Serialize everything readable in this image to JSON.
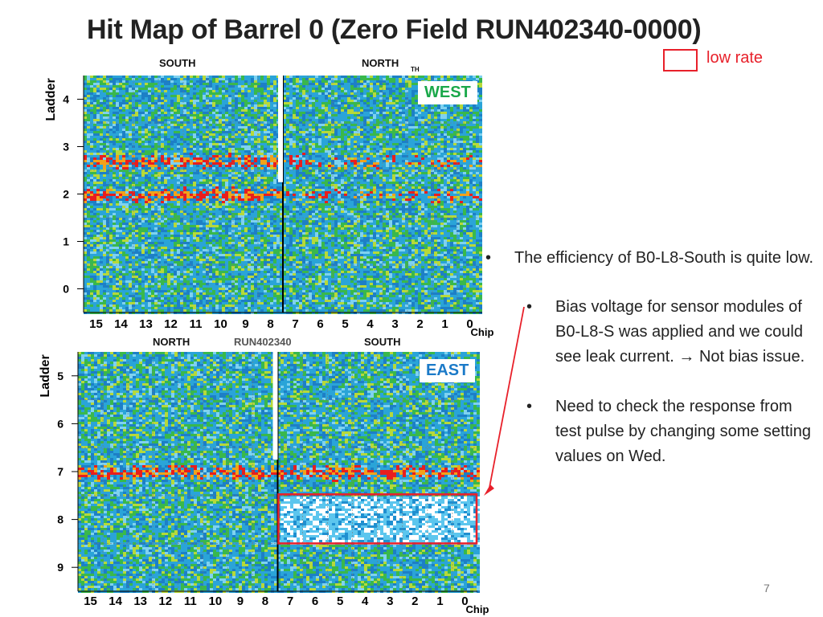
{
  "slide": {
    "title": "Hit Map of Barrel 0 (Zero Field RUN402340-0000)",
    "legend": "low rate",
    "page_number": "7",
    "bullets": [
      "The efficiency of B0-L8-South is quite low.",
      "Bias voltage for sensor modules of B0-L8-S was applied and we could see leak current. → Not bias issue.",
      "Need to check the response from test pulse by changing some setting values on Wed."
    ],
    "bullet_symbol": "•"
  },
  "colors": {
    "accent_red": "#e8202a",
    "west_green": "#1aa84a",
    "east_blue": "#1b7ac8"
  },
  "chart_data": [
    {
      "type": "heatmap",
      "title": "WEST",
      "xlabel": "Chip",
      "ylabel": "Ladder",
      "x_tick_labels": [
        "15",
        "14",
        "13",
        "12",
        "11",
        "10",
        "9",
        "8",
        "7",
        "6",
        "5",
        "4",
        "3",
        "2",
        "1",
        "0"
      ],
      "y_ticks": [
        0,
        1,
        2,
        3,
        4
      ],
      "ylim": [
        -0.5,
        4.5
      ],
      "top_labels": [
        "SOUTH",
        "NORTH"
      ],
      "corner_fragment": "TH",
      "divider_after_chip": 8,
      "hot_rows": [
        2,
        2.7
      ],
      "low_regions": []
    },
    {
      "type": "heatmap",
      "title": "EAST",
      "xlabel": "Chip",
      "ylabel": "Ladder",
      "x_tick_labels": [
        "15",
        "14",
        "13",
        "12",
        "11",
        "10",
        "9",
        "8",
        "7",
        "6",
        "5",
        "4",
        "3",
        "2",
        "1",
        "0"
      ],
      "y_ticks": [
        5,
        6,
        7,
        8,
        9
      ],
      "ylim": [
        4.5,
        9.5
      ],
      "top_labels": [
        "NORTH",
        "SOUTH"
      ],
      "overlay_text": "RUN402340",
      "divider_after_chip": 8,
      "hot_rows": [
        7
      ],
      "low_regions": [
        {
          "chips": "7-0",
          "ladder": 8,
          "label": "low rate"
        }
      ]
    }
  ]
}
